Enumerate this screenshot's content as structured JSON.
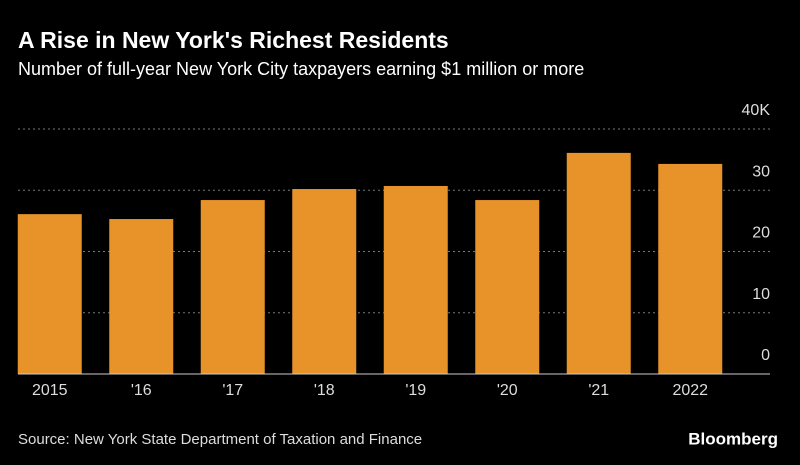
{
  "chart_data": {
    "type": "bar",
    "title": "A Rise in New York's Richest Residents",
    "subtitle": "Number of full-year New York City taxpayers earning $1 million or more",
    "categories": [
      "2015",
      "'16",
      "'17",
      "'18",
      "'19",
      "'20",
      "'21",
      "2022"
    ],
    "values": [
      26.1,
      25.3,
      28.4,
      30.2,
      30.7,
      28.4,
      36.1,
      34.3
    ],
    "color": "#e8922a",
    "ylim": [
      0,
      40
    ],
    "yticks": [
      0,
      10,
      20,
      30,
      {
        "value": 40,
        "label": "40K"
      }
    ],
    "grid": true,
    "source": "Source: New York State Department of Taxation and Finance",
    "brand": "Bloomberg"
  }
}
